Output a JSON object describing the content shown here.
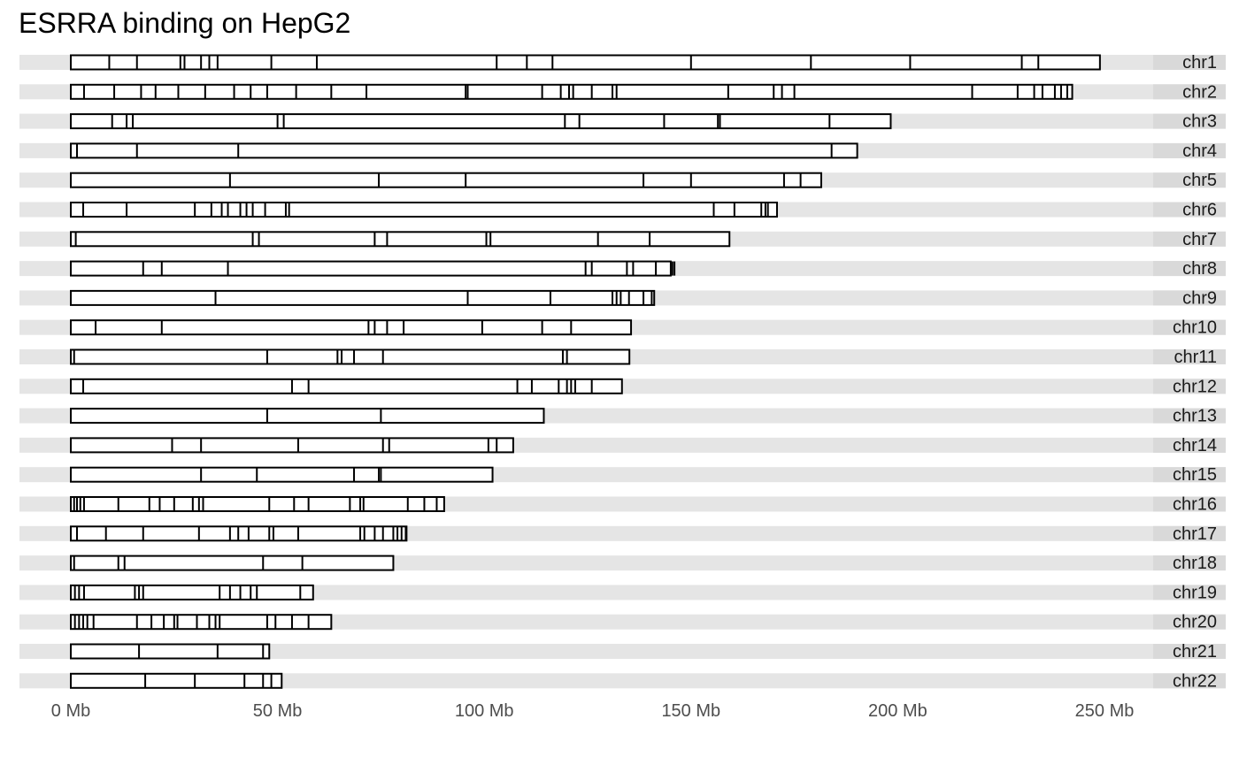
{
  "chart_data": {
    "type": "chromosome-ideogram",
    "title": "ESRRA binding on HepG2",
    "xlabel": "",
    "ylabel": "",
    "xlim": [
      0,
      250
    ],
    "x_unit": "Mb",
    "x_ticks": [
      {
        "value": 0,
        "label": "0 Mb"
      },
      {
        "value": 50,
        "label": "50 Mb"
      },
      {
        "value": 100,
        "label": "100 Mb"
      },
      {
        "value": 150,
        "label": "150 Mb"
      },
      {
        "value": 200,
        "label": "200 Mb"
      },
      {
        "value": 250,
        "label": "250 Mb"
      }
    ],
    "colors": {
      "strip": "#e5e5e5",
      "outline": "#000000",
      "fill": "#ffffff"
    },
    "chromosomes": [
      {
        "name": "chr1",
        "length": 248.9,
        "binding_sites": [
          9.3,
          16.0,
          26.5,
          27.5,
          31.5,
          33.5,
          35.5,
          48.5,
          59.5,
          103.0,
          110.3,
          116.5,
          150.0,
          179.0,
          203.0,
          230.0,
          234.0
        ]
      },
      {
        "name": "chr2",
        "length": 242.2,
        "binding_sites": [
          3.2,
          10.5,
          17.0,
          20.5,
          26.0,
          32.5,
          39.5,
          43.5,
          47.5,
          54.5,
          63.0,
          71.5,
          95.5,
          96.0,
          114.0,
          118.5,
          120.5,
          121.5,
          126.0,
          131.0,
          132.0,
          159.0,
          170.0,
          172.0,
          175.0,
          218.0,
          229.0,
          233.0,
          235.0,
          238.0,
          239.5,
          241.0
        ]
      },
      {
        "name": "chr3",
        "length": 198.3,
        "binding_sites": [
          10.0,
          13.5,
          15.0,
          50.0,
          51.5,
          119.5,
          123.0,
          143.5,
          156.5,
          157.0,
          183.5
        ]
      },
      {
        "name": "chr4",
        "length": 190.2,
        "binding_sites": [
          1.5,
          16.0,
          40.5,
          184.0
        ]
      },
      {
        "name": "chr5",
        "length": 181.5,
        "binding_sites": [
          38.5,
          74.5,
          95.5,
          138.5,
          150.0,
          172.5,
          176.5
        ]
      },
      {
        "name": "chr6",
        "length": 170.8,
        "binding_sites": [
          3.0,
          13.5,
          30.0,
          34.0,
          36.5,
          38.0,
          41.0,
          42.5,
          44.0,
          47.0,
          52.0,
          52.8,
          155.5,
          160.5,
          167.0,
          168.0,
          168.6
        ]
      },
      {
        "name": "chr7",
        "length": 159.3,
        "binding_sites": [
          1.2,
          44.0,
          45.5,
          73.5,
          76.5,
          100.5,
          101.5,
          127.5,
          140.0
        ]
      },
      {
        "name": "chr8",
        "length": 145.1,
        "binding_sites": [
          17.5,
          22.0,
          38.0,
          124.5,
          126.0,
          134.5,
          136.0,
          141.5,
          145.5,
          146.0
        ]
      },
      {
        "name": "chr9",
        "length": 141.1,
        "binding_sites": [
          35.0,
          96.0,
          116.0,
          131.0,
          132.0,
          133.0,
          135.0,
          138.5,
          140.5
        ]
      },
      {
        "name": "chr10",
        "length": 135.5,
        "binding_sites": [
          6.0,
          22.0,
          72.0,
          73.5,
          76.5,
          80.5,
          99.5,
          114.0,
          121.0
        ]
      },
      {
        "name": "chr11",
        "length": 135.1,
        "binding_sites": [
          0.8,
          47.5,
          64.5,
          65.5,
          68.5,
          75.5,
          119.0,
          120.0
        ]
      },
      {
        "name": "chr12",
        "length": 133.3,
        "binding_sites": [
          3.0,
          53.5,
          57.5,
          108.0,
          111.5,
          118.0,
          120.0,
          121.0,
          122.0,
          126.0
        ]
      },
      {
        "name": "chr13",
        "length": 114.4,
        "binding_sites": [
          47.5,
          75.0
        ]
      },
      {
        "name": "chr14",
        "length": 107.0,
        "binding_sites": [
          24.5,
          31.5,
          55.0,
          75.5,
          77.0,
          101.0,
          103.0
        ]
      },
      {
        "name": "chr15",
        "length": 102.0,
        "binding_sites": [
          31.5,
          45.0,
          68.5,
          74.5,
          75.0
        ]
      },
      {
        "name": "chr16",
        "length": 90.3,
        "binding_sites": [
          0.8,
          1.5,
          2.3,
          3.2,
          11.5,
          19.0,
          21.5,
          25.0,
          29.5,
          31.0,
          32.0,
          48.0,
          54.0,
          57.5,
          67.5,
          70.0,
          70.8,
          81.5,
          85.5,
          88.5
        ]
      },
      {
        "name": "chr17",
        "length": 81.2,
        "binding_sites": [
          1.5,
          8.5,
          17.5,
          31.0,
          38.5,
          40.5,
          43.0,
          48.0,
          49.0,
          55.0,
          70.0,
          71.0,
          73.5,
          75.5,
          78.0,
          79.0,
          80.0,
          81.0
        ]
      },
      {
        "name": "chr18",
        "length": 78.0,
        "binding_sites": [
          0.8,
          11.5,
          13.0,
          46.5,
          56.0
        ]
      },
      {
        "name": "chr19",
        "length": 58.6,
        "binding_sites": [
          1.0,
          2.0,
          3.2,
          15.5,
          16.5,
          17.5,
          36.0,
          38.5,
          41.0,
          43.5,
          45.0,
          55.5
        ]
      },
      {
        "name": "chr20",
        "length": 63.0,
        "binding_sites": [
          1.0,
          2.0,
          3.0,
          4.0,
          5.5,
          16.0,
          19.5,
          22.5,
          25.0,
          25.8,
          30.5,
          33.5,
          35.0,
          36.0,
          47.5,
          49.5,
          53.5,
          57.5
        ]
      },
      {
        "name": "chr21",
        "length": 48.0,
        "binding_sites": [
          16.5,
          35.5,
          46.5
        ]
      },
      {
        "name": "chr22",
        "length": 51.0,
        "binding_sites": [
          18.0,
          30.0,
          42.0,
          46.5,
          48.5
        ]
      }
    ]
  }
}
